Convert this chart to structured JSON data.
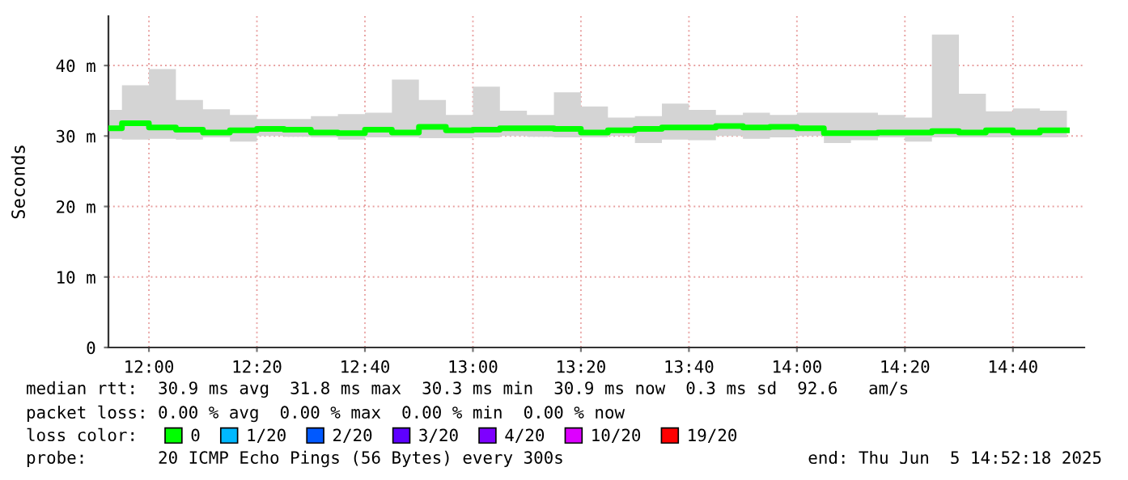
{
  "chart_data": {
    "type": "step",
    "ylabel": "Seconds",
    "x": [
      11.875,
      11.9167,
      12,
      12.0833,
      12.1667,
      12.25,
      12.3333,
      12.4167,
      12.5,
      12.5833,
      12.6667,
      12.75,
      12.8333,
      12.9167,
      13,
      13.0833,
      13.1667,
      13.25,
      13.3333,
      13.4167,
      13.5,
      13.5833,
      13.6667,
      13.75,
      13.8333,
      13.9167,
      14,
      14.0833,
      14.1667,
      14.25,
      14.3333,
      14.4167,
      14.5,
      14.5833,
      14.6667,
      14.75,
      14.8333
    ],
    "series": [
      {
        "name": "0",
        "color": "#00ff00",
        "values": [
          31.1,
          31.8,
          31.2,
          30.9,
          30.5,
          30.8,
          31.0,
          30.9,
          30.5,
          30.4,
          30.9,
          30.5,
          31.3,
          30.8,
          30.9,
          31.1,
          31.1,
          31.0,
          30.5,
          30.8,
          31.0,
          31.2,
          31.2,
          31.4,
          31.2,
          31.3,
          31.1,
          30.4,
          30.4,
          30.5,
          30.5,
          30.7,
          30.5,
          30.8,
          30.5,
          30.8,
          30.8
        ],
        "lower": [
          29.6,
          29.5,
          29.6,
          29.5,
          29.8,
          29.2,
          30.0,
          29.9,
          29.8,
          29.5,
          29.8,
          29.8,
          29.7,
          29.7,
          29.8,
          30.0,
          29.9,
          29.8,
          29.8,
          30.0,
          29.0,
          29.5,
          29.4,
          30.0,
          29.6,
          29.8,
          30.0,
          29.0,
          29.4,
          29.8,
          29.2,
          29.8,
          29.8,
          29.8,
          29.8,
          29.8,
          29.8
        ],
        "upper": [
          33.7,
          37.2,
          39.5,
          35.1,
          33.8,
          33.0,
          32.4,
          32.4,
          32.8,
          33.1,
          33.3,
          38.0,
          35.1,
          33.0,
          37.0,
          33.6,
          33.0,
          36.2,
          34.2,
          32.6,
          32.8,
          34.6,
          33.7,
          33.0,
          33.3,
          33.0,
          33.3,
          33.3,
          33.3,
          33.0,
          32.6,
          44.4,
          36.0,
          33.5,
          33.9,
          33.6,
          33.6
        ]
      },
      {
        "name": "1/20",
        "color": "#00b8ff",
        "values": [
          null,
          null,
          null,
          null,
          null,
          null,
          null,
          null,
          null,
          null,
          null,
          null,
          null,
          null,
          null,
          null,
          null,
          null,
          null,
          null,
          null,
          null,
          null,
          null,
          null,
          null,
          null,
          null,
          null,
          null,
          null,
          null,
          null,
          null,
          null,
          null,
          null
        ]
      },
      {
        "name": "2/20",
        "color": "#0059ff",
        "values": [
          null,
          null,
          null,
          null,
          null,
          null,
          null,
          null,
          null,
          null,
          null,
          null,
          null,
          null,
          null,
          null,
          null,
          null,
          null,
          null,
          null,
          null,
          null,
          null,
          null,
          null,
          null,
          null,
          null,
          null,
          null,
          null,
          null,
          null,
          null,
          null,
          null
        ]
      },
      {
        "name": "3/20",
        "color": "#5e00ff",
        "values": [
          null,
          null,
          null,
          null,
          null,
          null,
          null,
          null,
          null,
          null,
          null,
          null,
          null,
          null,
          null,
          null,
          null,
          null,
          null,
          null,
          null,
          null,
          null,
          null,
          null,
          null,
          null,
          null,
          null,
          null,
          null,
          null,
          null,
          null,
          null,
          null,
          null
        ]
      },
      {
        "name": "4/20",
        "color": "#7e00ff",
        "values": [
          null,
          null,
          null,
          null,
          null,
          null,
          null,
          null,
          null,
          null,
          null,
          null,
          null,
          null,
          null,
          null,
          null,
          null,
          null,
          null,
          null,
          null,
          null,
          null,
          null,
          null,
          null,
          null,
          null,
          null,
          null,
          null,
          null,
          null,
          null,
          null,
          null
        ]
      },
      {
        "name": "10/20",
        "color": "#dd00ff",
        "values": [
          null,
          null,
          null,
          null,
          null,
          null,
          null,
          null,
          null,
          null,
          null,
          null,
          null,
          null,
          null,
          null,
          null,
          null,
          null,
          null,
          null,
          null,
          null,
          null,
          null,
          null,
          null,
          null,
          null,
          null,
          null,
          null,
          null,
          null,
          null,
          null,
          null
        ]
      },
      {
        "name": "19/20",
        "color": "#ff0000",
        "values": [
          null,
          null,
          null,
          null,
          null,
          null,
          null,
          null,
          null,
          null,
          null,
          null,
          null,
          null,
          null,
          null,
          null,
          null,
          null,
          null,
          null,
          null,
          null,
          null,
          null,
          null,
          null,
          null,
          null,
          null,
          null,
          null,
          null,
          null,
          null,
          null,
          null
        ]
      }
    ],
    "legend_title": "loss color:",
    "legend": "bottom",
    "xlim": [
      11.875,
      14.887
    ],
    "xticks": [
      {
        "value": 12,
        "label": "12:00"
      },
      {
        "value": 12.3333,
        "label": "12:20"
      },
      {
        "value": 12.6667,
        "label": "12:40"
      },
      {
        "value": 13,
        "label": "13:00"
      },
      {
        "value": 13.3333,
        "label": "13:20"
      },
      {
        "value": 13.6667,
        "label": "13:40"
      },
      {
        "value": 14,
        "label": "14:00"
      },
      {
        "value": 14.3333,
        "label": "14:20"
      },
      {
        "value": 14.6667,
        "label": "14:40"
      }
    ],
    "ylim": [
      0,
      47
    ],
    "yticks": [
      0,
      {
        "value": 10,
        "label": "10 m"
      },
      {
        "value": 20,
        "label": "20 m"
      },
      {
        "value": 30,
        "label": "30 m"
      },
      {
        "value": 40,
        "label": "40 m"
      }
    ],
    "grid": true,
    "annotations": [
      "median rtt:  30.9 ms avg  31.8 ms max  30.3 ms min  30.9 ms now  0.3 ms sd  92.6   am/s",
      "packet loss: 0.00 % avg  0.00 % max  0.00 % min  0.00 % now",
      "probe:       20 ICMP Echo Pings (56 Bytes) every 300s",
      "end: Thu Jun  5 14:52:18 2025"
    ]
  }
}
